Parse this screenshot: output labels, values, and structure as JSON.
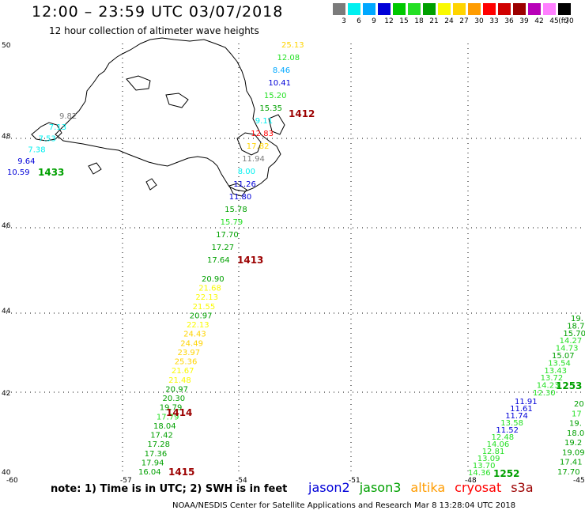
{
  "title": "12:00 – 23:59 UTC 03/07/2018",
  "subtitle": "12 hour collection of altimeter wave heights",
  "scale": {
    "colors": [
      "#7b7b7b",
      "#00f0f0",
      "#00a8ff",
      "#0000d8",
      "#00c800",
      "#24e024",
      "#00a000",
      "#fafa00",
      "#ffd400",
      "#ff9c00",
      "#ff0000",
      "#d00000",
      "#9c0000",
      "#b800b8",
      "#ff80ff",
      "#000000"
    ],
    "labels": [
      "3",
      "6",
      "9",
      "12",
      "15",
      "18",
      "21",
      "24",
      "27",
      "30",
      "33",
      "36",
      "39",
      "42",
      "45",
      "70"
    ],
    "unit": "(ft)"
  },
  "axes": {
    "lat_labels": [
      "50",
      "48",
      "46",
      "44",
      "42",
      "40"
    ],
    "lon_labels": [
      "-60",
      "-57",
      "-54",
      "-51",
      "-48",
      "-45"
    ]
  },
  "passes": [
    {
      "id": "1412",
      "color": "#9c0000",
      "points": [
        {
          "v": "25.13",
          "c": "#ffd400"
        },
        {
          "v": "12.08",
          "c": "#24e024"
        },
        {
          "v": "8.46",
          "c": "#00a8ff"
        },
        {
          "v": "10.41",
          "c": "#0000d8"
        },
        {
          "v": "15.20",
          "c": "#24e024"
        },
        {
          "v": "15.35",
          "c": "#00a000"
        },
        {
          "v": "9.11",
          "c": "#00f0f0"
        },
        {
          "v": "12.83",
          "c": "#ff0000"
        },
        {
          "v": "17.82",
          "c": "#ffd400"
        },
        {
          "v": "11.94",
          "c": "#7b7b7b"
        },
        {
          "v": "8.00",
          "c": "#00f0f0"
        },
        {
          "v": "11.26",
          "c": "#0000d8"
        },
        {
          "v": "11.80",
          "c": "#0000d8"
        },
        {
          "v": "15.78",
          "c": "#00a000"
        },
        {
          "v": "15.79",
          "c": "#24e024"
        },
        {
          "v": "17.70",
          "c": "#00a000"
        },
        {
          "v": "17.27",
          "c": "#00a000"
        },
        {
          "v": "17.64",
          "c": "#00a000"
        }
      ]
    },
    {
      "id": "1413",
      "color": "#9c0000",
      "points": [
        {
          "v": "20.90",
          "c": "#00a000"
        },
        {
          "v": "21.68",
          "c": "#fafa00"
        },
        {
          "v": "22.13",
          "c": "#fafa00"
        },
        {
          "v": "21.55",
          "c": "#fafa00"
        },
        {
          "v": "20.97",
          "c": "#00a000"
        },
        {
          "v": "22.13",
          "c": "#fafa00"
        },
        {
          "v": "24.43",
          "c": "#ffd400"
        },
        {
          "v": "24.49",
          "c": "#ffd400"
        },
        {
          "v": "23.97",
          "c": "#ffd400"
        },
        {
          "v": "25.36",
          "c": "#ffd400"
        },
        {
          "v": "21.67",
          "c": "#fafa00"
        },
        {
          "v": "21.48",
          "c": "#fafa00"
        },
        {
          "v": "20.97",
          "c": "#00a000"
        },
        {
          "v": "20.30",
          "c": "#00a000"
        },
        {
          "v": "19.79",
          "c": "#00a000"
        },
        {
          "v": "17.79",
          "c": "#24e024"
        },
        {
          "v": "18.04",
          "c": "#00a000"
        },
        {
          "v": "17.42",
          "c": "#00a000"
        },
        {
          "v": "17.28",
          "c": "#00a000"
        },
        {
          "v": "17.36",
          "c": "#00a000"
        },
        {
          "v": "17.94",
          "c": "#00a000"
        },
        {
          "v": "16.04",
          "c": "#00a000"
        }
      ]
    },
    {
      "id": "1414",
      "color": "#9c0000",
      "points": []
    },
    {
      "id": "1415",
      "color": "#9c0000",
      "points": []
    },
    {
      "id": "1433",
      "color": "#00a000",
      "points": [
        {
          "v": "9.82",
          "c": "#7b7b7b"
        },
        {
          "v": "7.13",
          "c": "#00f0f0"
        },
        {
          "v": "7.53",
          "c": "#00f0f0"
        },
        {
          "v": "7.38",
          "c": "#00f0f0"
        },
        {
          "v": "9.64",
          "c": "#0000d8"
        },
        {
          "v": "10.59",
          "c": "#0000d8"
        }
      ]
    },
    {
      "id": "1252",
      "color": "#00a000",
      "points": [
        {
          "v": "11.91",
          "c": "#0000d8"
        },
        {
          "v": "11.61",
          "c": "#0000d8"
        },
        {
          "v": "11.74",
          "c": "#0000d8"
        },
        {
          "v": "13.58",
          "c": "#24e024"
        },
        {
          "v": "11.52",
          "c": "#0000d8"
        },
        {
          "v": "12.48",
          "c": "#24e024"
        },
        {
          "v": "14.06",
          "c": "#24e024"
        },
        {
          "v": "12.81",
          "c": "#24e024"
        },
        {
          "v": "13.09",
          "c": "#24e024"
        },
        {
          "v": "13.70",
          "c": "#24e024"
        },
        {
          "v": "14.36",
          "c": "#24e024"
        }
      ]
    },
    {
      "id": "1253",
      "color": "#00a000",
      "points": [
        {
          "v": "19.",
          "c": "#00a000"
        },
        {
          "v": "18.7",
          "c": "#00a000"
        },
        {
          "v": "15.70",
          "c": "#00a000"
        },
        {
          "v": "14.27",
          "c": "#24e024"
        },
        {
          "v": "14.73",
          "c": "#24e024"
        },
        {
          "v": "15.07",
          "c": "#00a000"
        },
        {
          "v": "13.54",
          "c": "#24e024"
        },
        {
          "v": "13.43",
          "c": "#24e024"
        },
        {
          "v": "13.72",
          "c": "#24e024"
        },
        {
          "v": "14.23",
          "c": "#24e024"
        },
        {
          "v": "12.30",
          "c": "#24e024"
        }
      ]
    },
    {
      "id": "1253b",
      "color": "#00a000",
      "points": [
        {
          "v": "20",
          "c": "#00a000"
        },
        {
          "v": "17",
          "c": "#24e024"
        },
        {
          "v": "19.",
          "c": "#00a000"
        },
        {
          "v": "18.0",
          "c": "#00a000"
        },
        {
          "v": "19.2",
          "c": "#00a000"
        },
        {
          "v": "19.09",
          "c": "#00a000"
        },
        {
          "v": "17.41",
          "c": "#00a000"
        },
        {
          "v": "17.70",
          "c": "#00a000"
        }
      ]
    }
  ],
  "footer": {
    "note": "note:  1) Time is in UTC;  2) SWH is in feet",
    "satellites": [
      {
        "name": "jason2",
        "color": "#0000d8"
      },
      {
        "name": "jason3",
        "color": "#00a000"
      },
      {
        "name": "altika",
        "color": "#ff9c00"
      },
      {
        "name": "cryosat",
        "color": "#ff0000"
      },
      {
        "name": "s3a",
        "color": "#9c0000"
      }
    ],
    "credit": "NOAA/NESDIS Center for Satellite Applications and Research   Mar  8 13:28:04 UTC 2018"
  }
}
